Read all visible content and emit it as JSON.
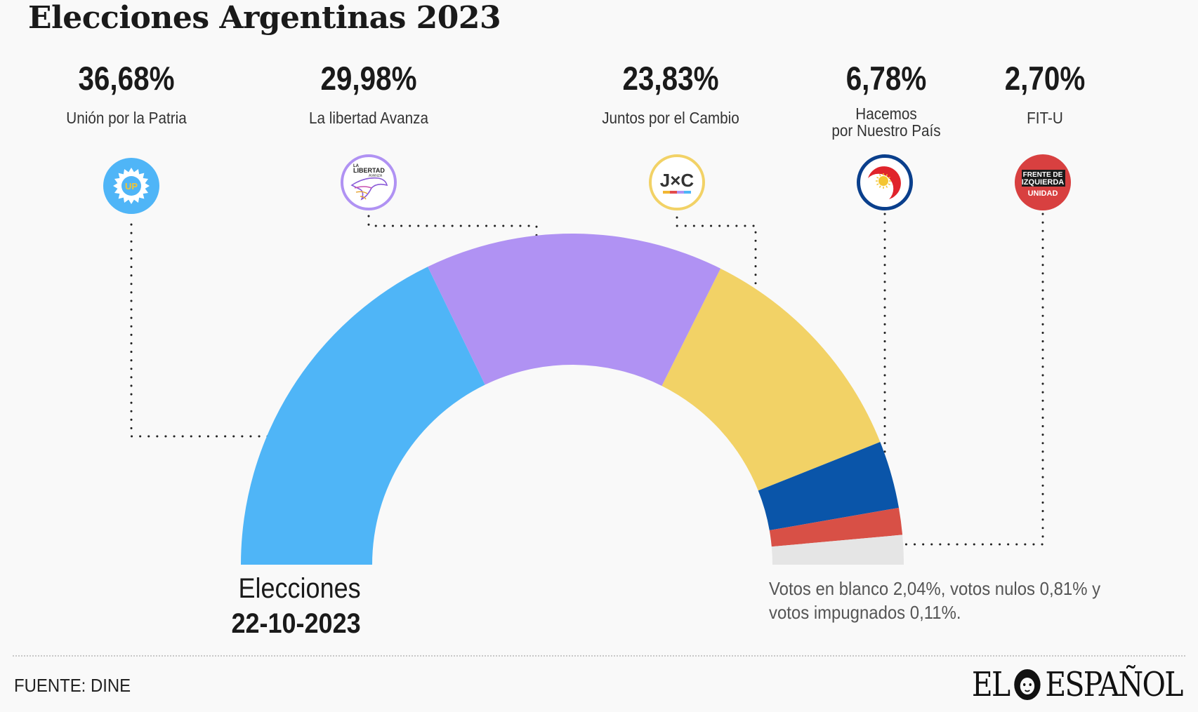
{
  "header": {
    "title": "Elecciones Argentinas 2023"
  },
  "chart_data": {
    "type": "pie",
    "variant": "semicircle-donut",
    "slices": [
      {
        "name": "Unión por la Patria",
        "value": 36.68,
        "label": "36,68%",
        "color": "#4fb5f7",
        "icon": "up-sun-logo-icon"
      },
      {
        "name": "La libertad Avanza",
        "value": 29.98,
        "label": "29,98%",
        "color": "#b092f3",
        "icon": "libertad-avanza-eagle-icon"
      },
      {
        "name": "Juntos por el Cambio",
        "value": 23.83,
        "label": "23,83%",
        "color": "#f2d266",
        "icon": "jxc-logo-icon"
      },
      {
        "name": "Hacemos\npor Nuestro País",
        "value": 6.78,
        "label": "6,78%",
        "color": "#0a55a9",
        "icon": "hacemos-sun-logo-icon"
      },
      {
        "name": "FIT-U",
        "value": 2.7,
        "label": "2,70%",
        "color": "#d85046",
        "icon": "fit-u-logo-icon"
      },
      {
        "name": "",
        "value": 2.96,
        "label": "",
        "color": "#e5e5e5"
      }
    ],
    "logo_texts": {
      "up": "UP",
      "lla": [
        "LA",
        "LIBERTAD",
        "AVANZA"
      ],
      "jxc": "J×C",
      "fitu": [
        "FRENTE DE",
        "IZQUIERDA",
        "UNIDAD"
      ]
    },
    "date_label": "Elecciones",
    "date_value": "22-10-2023",
    "note": "Votos en blanco 2,04%, votos nulos 0,81% y votos impugnados 0,11%."
  },
  "footer": {
    "source": "FUENTE: DINE",
    "brand_left": "EL",
    "brand_right": "ESPAÑOL"
  }
}
